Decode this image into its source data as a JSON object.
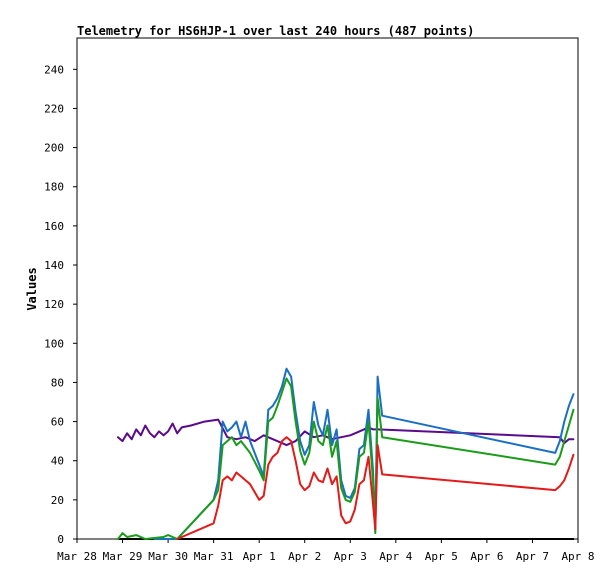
{
  "chart_data": {
    "type": "line",
    "title": "Telemetry for HS6HJP-1 over last 240 hours (487 points)",
    "xlabel": "",
    "ylabel": "Values",
    "ylim": [
      0,
      256
    ],
    "xlim": [
      0,
      11
    ],
    "y_ticks": [
      0,
      20,
      40,
      60,
      80,
      100,
      120,
      140,
      160,
      180,
      200,
      220,
      240
    ],
    "x_ticks": [
      {
        "label": "Mar 28",
        "day": 0
      },
      {
        "label": "Mar 29",
        "day": 1
      },
      {
        "label": "Mar 30",
        "day": 2
      },
      {
        "label": "Mar 31",
        "day": 3
      },
      {
        "label": "Apr 1",
        "day": 4
      },
      {
        "label": "Apr 2",
        "day": 5
      },
      {
        "label": "Apr 3",
        "day": 6
      },
      {
        "label": "Apr 4",
        "day": 7
      },
      {
        "label": "Apr 5",
        "day": 8
      },
      {
        "label": "Apr 6",
        "day": 9
      },
      {
        "label": "Apr 7",
        "day": 10
      },
      {
        "label": "Apr 8",
        "day": 11
      }
    ],
    "grid": false,
    "legend": "none",
    "series": [
      {
        "color": "#000000",
        "points": [
          [
            0.9,
            0
          ],
          [
            10.9,
            0
          ]
        ]
      },
      {
        "color": "#5a0a8c",
        "points": [
          [
            0.9,
            52
          ],
          [
            1.0,
            50
          ],
          [
            1.1,
            54
          ],
          [
            1.2,
            51
          ],
          [
            1.3,
            56
          ],
          [
            1.4,
            53
          ],
          [
            1.5,
            58
          ],
          [
            1.6,
            54
          ],
          [
            1.7,
            52
          ],
          [
            1.8,
            55
          ],
          [
            1.9,
            53
          ],
          [
            2.0,
            55
          ],
          [
            2.1,
            59
          ],
          [
            2.2,
            54
          ],
          [
            2.3,
            57
          ],
          [
            2.5,
            58
          ],
          [
            2.8,
            60
          ],
          [
            3.1,
            61
          ],
          [
            3.3,
            52
          ],
          [
            3.5,
            51
          ],
          [
            3.7,
            52
          ],
          [
            3.9,
            50
          ],
          [
            4.1,
            53
          ],
          [
            4.3,
            51
          ],
          [
            4.5,
            49
          ],
          [
            4.6,
            48
          ],
          [
            4.8,
            50
          ],
          [
            5.0,
            55
          ],
          [
            5.2,
            52
          ],
          [
            5.4,
            53
          ],
          [
            5.6,
            51
          ],
          [
            5.8,
            52
          ],
          [
            6.0,
            53
          ],
          [
            6.2,
            55
          ],
          [
            6.4,
            57
          ],
          [
            6.5,
            56
          ],
          [
            6.6,
            56
          ],
          [
            10.6,
            52
          ],
          [
            10.7,
            49
          ],
          [
            10.8,
            51
          ],
          [
            10.9,
            51
          ]
        ]
      },
      {
        "color": "#1a6fc4",
        "points": [
          [
            1.7,
            0
          ],
          [
            2.2,
            0
          ],
          [
            3.0,
            20
          ],
          [
            3.1,
            30
          ],
          [
            3.2,
            60
          ],
          [
            3.3,
            55
          ],
          [
            3.4,
            57
          ],
          [
            3.5,
            60
          ],
          [
            3.6,
            52
          ],
          [
            3.7,
            60
          ],
          [
            3.8,
            50
          ],
          [
            4.0,
            38
          ],
          [
            4.1,
            32
          ],
          [
            4.2,
            66
          ],
          [
            4.3,
            68
          ],
          [
            4.4,
            72
          ],
          [
            4.5,
            78
          ],
          [
            4.6,
            87
          ],
          [
            4.7,
            83
          ],
          [
            4.8,
            65
          ],
          [
            4.9,
            50
          ],
          [
            5.0,
            43
          ],
          [
            5.1,
            48
          ],
          [
            5.2,
            70
          ],
          [
            5.3,
            58
          ],
          [
            5.4,
            53
          ],
          [
            5.5,
            66
          ],
          [
            5.6,
            48
          ],
          [
            5.7,
            56
          ],
          [
            5.8,
            30
          ],
          [
            5.9,
            22
          ],
          [
            6.0,
            21
          ],
          [
            6.1,
            26
          ],
          [
            6.2,
            46
          ],
          [
            6.3,
            48
          ],
          [
            6.4,
            66
          ],
          [
            6.5,
            35
          ],
          [
            6.55,
            5
          ],
          [
            6.6,
            83
          ],
          [
            6.7,
            63
          ],
          [
            10.5,
            44
          ],
          [
            10.6,
            50
          ],
          [
            10.7,
            60
          ],
          [
            10.8,
            68
          ],
          [
            10.9,
            74
          ]
        ]
      },
      {
        "color": "#1a9c1a",
        "points": [
          [
            0.9,
            0
          ],
          [
            1.0,
            3
          ],
          [
            1.1,
            1
          ],
          [
            1.3,
            2
          ],
          [
            1.5,
            0
          ],
          [
            1.9,
            1
          ],
          [
            2.0,
            2
          ],
          [
            2.2,
            0
          ],
          [
            3.0,
            20
          ],
          [
            3.1,
            25
          ],
          [
            3.2,
            48
          ],
          [
            3.3,
            50
          ],
          [
            3.4,
            52
          ],
          [
            3.5,
            48
          ],
          [
            3.6,
            50
          ],
          [
            3.8,
            44
          ],
          [
            4.0,
            35
          ],
          [
            4.1,
            30
          ],
          [
            4.2,
            60
          ],
          [
            4.3,
            62
          ],
          [
            4.4,
            68
          ],
          [
            4.5,
            75
          ],
          [
            4.6,
            82
          ],
          [
            4.7,
            78
          ],
          [
            4.8,
            60
          ],
          [
            4.9,
            45
          ],
          [
            5.0,
            38
          ],
          [
            5.1,
            44
          ],
          [
            5.2,
            60
          ],
          [
            5.3,
            50
          ],
          [
            5.4,
            48
          ],
          [
            5.5,
            58
          ],
          [
            5.6,
            42
          ],
          [
            5.7,
            50
          ],
          [
            5.8,
            26
          ],
          [
            5.9,
            20
          ],
          [
            6.0,
            19
          ],
          [
            6.1,
            24
          ],
          [
            6.2,
            42
          ],
          [
            6.3,
            44
          ],
          [
            6.4,
            60
          ],
          [
            6.5,
            30
          ],
          [
            6.55,
            3
          ],
          [
            6.6,
            72
          ],
          [
            6.7,
            52
          ],
          [
            10.5,
            38
          ],
          [
            10.6,
            42
          ],
          [
            10.7,
            50
          ],
          [
            10.8,
            58
          ],
          [
            10.9,
            66
          ]
        ]
      },
      {
        "color": "#e31a1a",
        "points": [
          [
            2.2,
            0
          ],
          [
            3.0,
            8
          ],
          [
            3.1,
            17
          ],
          [
            3.2,
            30
          ],
          [
            3.3,
            32
          ],
          [
            3.4,
            30
          ],
          [
            3.5,
            34
          ],
          [
            3.6,
            32
          ],
          [
            3.7,
            30
          ],
          [
            3.8,
            28
          ],
          [
            4.0,
            20
          ],
          [
            4.1,
            22
          ],
          [
            4.2,
            38
          ],
          [
            4.3,
            42
          ],
          [
            4.4,
            44
          ],
          [
            4.5,
            50
          ],
          [
            4.6,
            52
          ],
          [
            4.7,
            50
          ],
          [
            4.8,
            40
          ],
          [
            4.9,
            28
          ],
          [
            5.0,
            25
          ],
          [
            5.1,
            27
          ],
          [
            5.2,
            34
          ],
          [
            5.3,
            30
          ],
          [
            5.4,
            29
          ],
          [
            5.5,
            36
          ],
          [
            5.6,
            28
          ],
          [
            5.7,
            32
          ],
          [
            5.8,
            12
          ],
          [
            5.9,
            8
          ],
          [
            6.0,
            9
          ],
          [
            6.1,
            15
          ],
          [
            6.2,
            28
          ],
          [
            6.3,
            30
          ],
          [
            6.4,
            42
          ],
          [
            6.5,
            18
          ],
          [
            6.55,
            5
          ],
          [
            6.6,
            48
          ],
          [
            6.7,
            33
          ],
          [
            10.5,
            25
          ],
          [
            10.6,
            27
          ],
          [
            10.7,
            30
          ],
          [
            10.8,
            36
          ],
          [
            10.9,
            43
          ]
        ]
      }
    ]
  }
}
